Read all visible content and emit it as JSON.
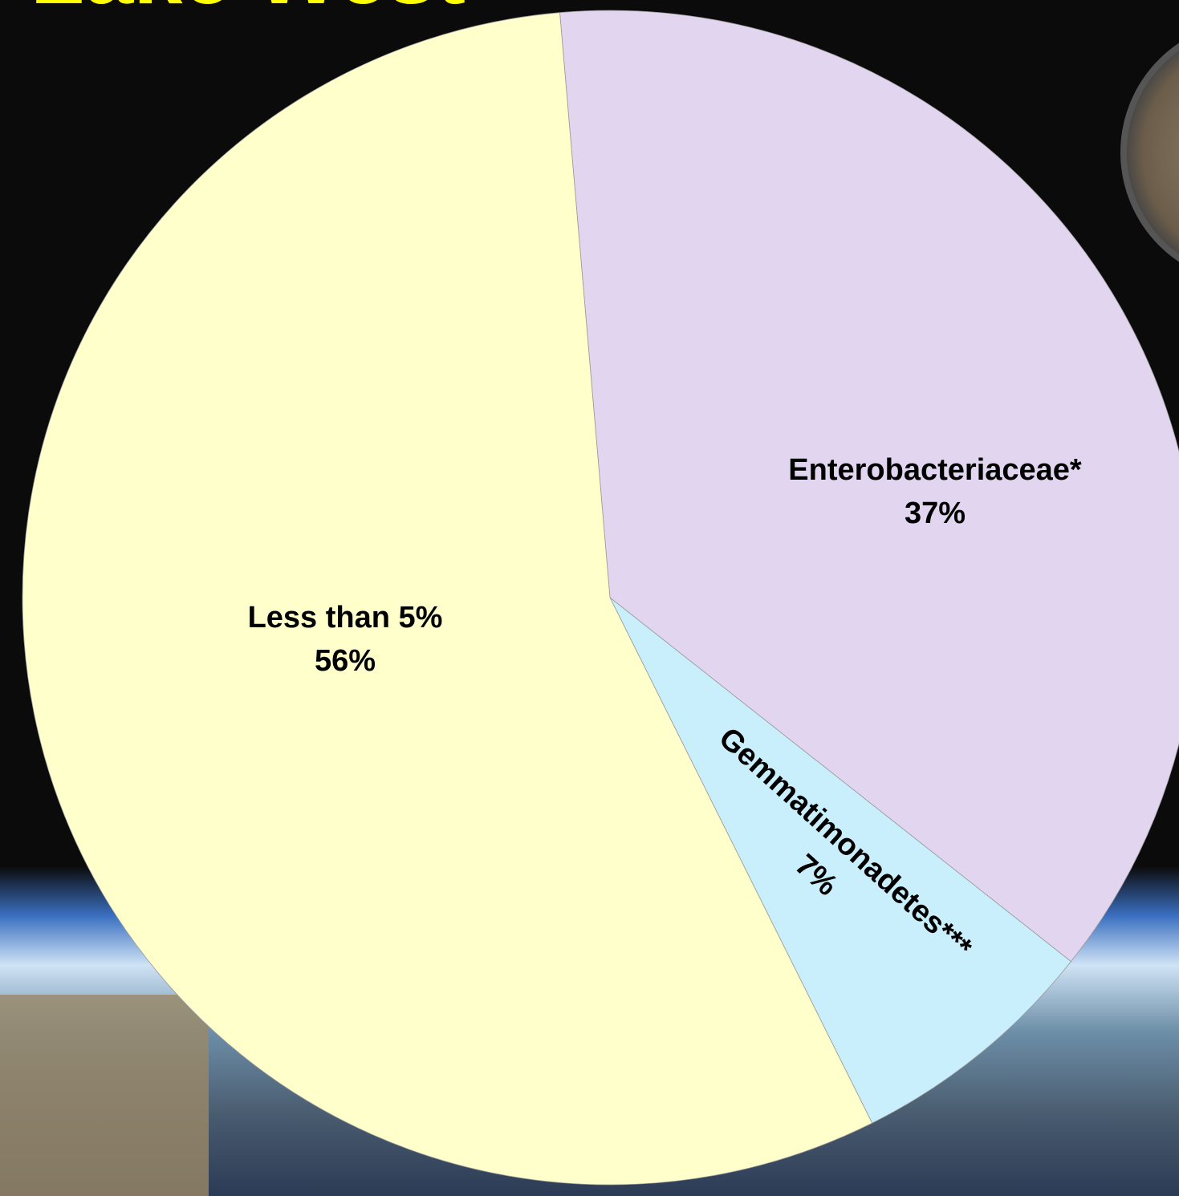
{
  "chart_data": {
    "type": "pie",
    "title": "Lake West",
    "categories": [
      "Enterobacteriaceae*",
      "Gemmatimonadetes***",
      "Less than 5%"
    ],
    "values": [
      37,
      7,
      56
    ],
    "value_labels": [
      "37%",
      "7%",
      "56%"
    ],
    "colors": [
      "#e1d5ef",
      "#c9eefc",
      "#ffffcc"
    ]
  }
}
